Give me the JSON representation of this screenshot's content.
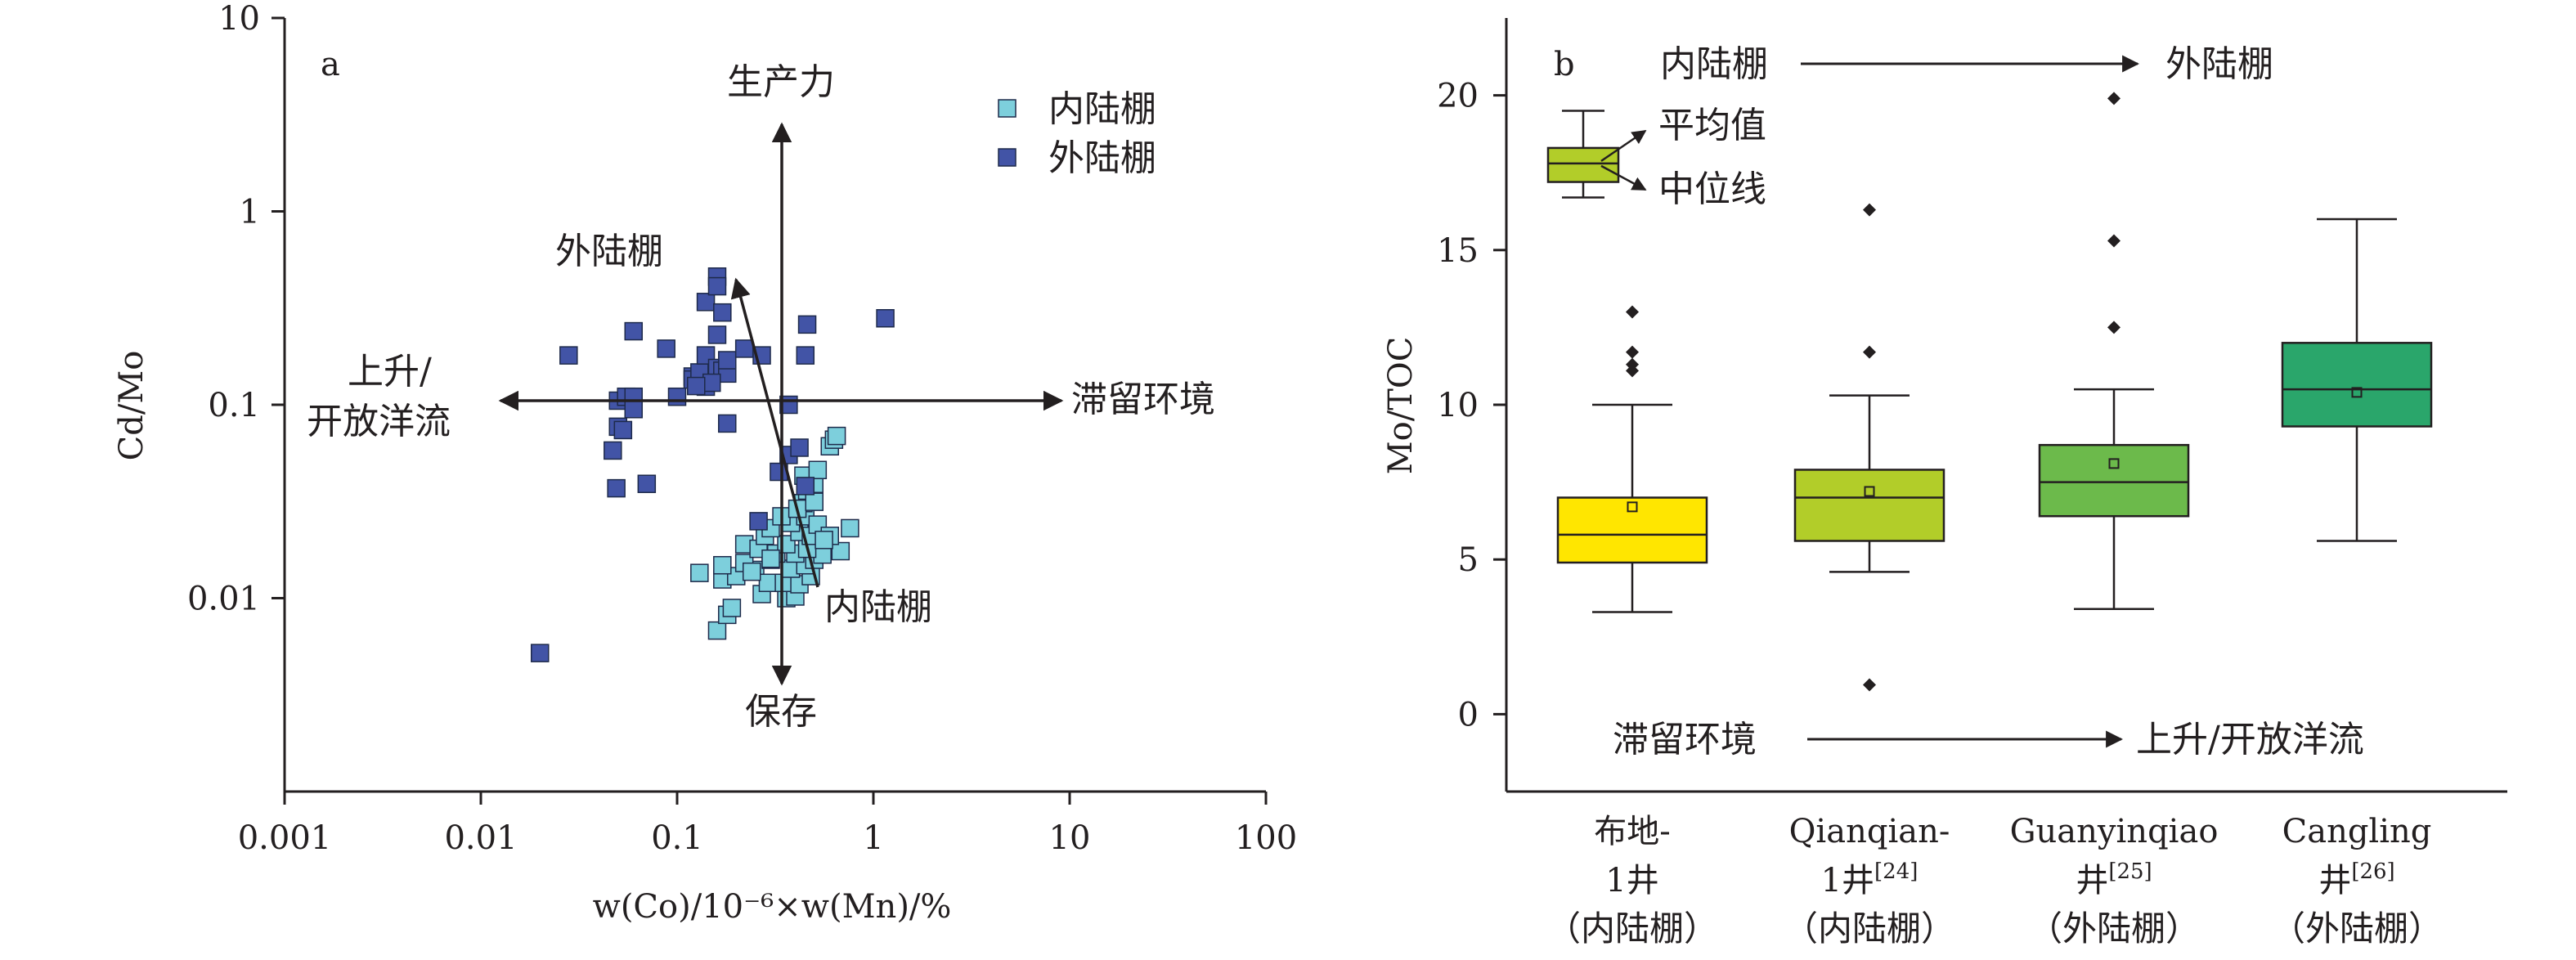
{
  "chart_data": [
    {
      "panel": "a",
      "type": "scatter",
      "xlabel": "w(Co)/10⁻⁶×w(Mn)/%",
      "ylabel": "Cd/Mo",
      "xscale": "log",
      "yscale": "log",
      "xlim": [
        0.001,
        100
      ],
      "ylim": [
        0.001,
        10
      ],
      "xticks": [
        0.001,
        0.01,
        0.1,
        1,
        10,
        100
      ],
      "xtick_labels": [
        "0.001",
        "0.01",
        "0.1",
        "1",
        "10",
        "100"
      ],
      "yticks": [
        0.01,
        0.1,
        1,
        10
      ],
      "ytick_labels": [
        "0.01",
        "0.1",
        "1",
        "10"
      ],
      "legend_position": "top-right",
      "colors": {
        "inner": "#7dcfdc",
        "outer": "#4254a6",
        "edge": "#1e2a4a"
      },
      "annotations": {
        "up": "生产力",
        "down": "保存",
        "right": "滞留环境",
        "left_line1": "上升/",
        "left_line2": "开放洋流",
        "trend_outer": "外陆棚",
        "trend_inner": "内陆棚"
      },
      "series": [
        {
          "name": "内陆棚",
          "key": "inner",
          "points": [
            [
              0.16,
              0.0068
            ],
            [
              0.18,
              0.0082
            ],
            [
              0.19,
              0.0089
            ],
            [
              0.27,
              0.0105
            ],
            [
              0.36,
              0.01
            ],
            [
              0.4,
              0.0102
            ],
            [
              0.17,
              0.0125
            ],
            [
              0.2,
              0.013
            ],
            [
              0.25,
              0.014
            ],
            [
              0.29,
              0.012
            ],
            [
              0.35,
              0.012
            ],
            [
              0.42,
              0.0118
            ],
            [
              0.48,
              0.013
            ],
            [
              0.17,
              0.0148
            ],
            [
              0.22,
              0.0152
            ],
            [
              0.3,
              0.0158
            ],
            [
              0.38,
              0.0142
            ],
            [
              0.45,
              0.0148
            ],
            [
              0.5,
              0.0158
            ],
            [
              0.55,
              0.0168
            ],
            [
              0.22,
              0.019
            ],
            [
              0.26,
              0.018
            ],
            [
              0.32,
              0.017
            ],
            [
              0.4,
              0.017
            ],
            [
              0.46,
              0.018
            ],
            [
              0.36,
              0.019
            ],
            [
              0.28,
              0.021
            ],
            [
              0.3,
              0.023
            ],
            [
              0.42,
              0.022
            ],
            [
              0.48,
              0.021
            ],
            [
              0.38,
              0.0245
            ],
            [
              0.45,
              0.0265
            ],
            [
              0.52,
              0.024
            ],
            [
              0.68,
              0.0175
            ],
            [
              0.76,
              0.023
            ],
            [
              0.6,
              0.021
            ],
            [
              0.44,
              0.031
            ],
            [
              0.46,
              0.036
            ],
            [
              0.5,
              0.039
            ],
            [
              0.44,
              0.043
            ],
            [
              0.52,
              0.046
            ],
            [
              0.6,
              0.061
            ],
            [
              0.63,
              0.066
            ],
            [
              0.65,
              0.069
            ],
            [
              0.56,
              0.02
            ],
            [
              0.24,
              0.0137
            ],
            [
              0.3,
              0.016
            ],
            [
              0.34,
              0.0265
            ],
            [
              0.41,
              0.029
            ],
            [
              0.5,
              0.0315
            ],
            [
              0.13,
              0.0135
            ]
          ]
        },
        {
          "name": "外陆棚",
          "key": "outer",
          "points": [
            [
              0.02,
              0.0052
            ],
            [
              0.028,
              0.18
            ],
            [
              0.049,
              0.037
            ],
            [
              0.07,
              0.039
            ],
            [
              0.047,
              0.058
            ],
            [
              0.05,
              0.077
            ],
            [
              0.053,
              0.074
            ],
            [
              0.05,
              0.105
            ],
            [
              0.055,
              0.11
            ],
            [
              0.06,
              0.11
            ],
            [
              0.06,
              0.095
            ],
            [
              0.06,
              0.24
            ],
            [
              0.088,
              0.195
            ],
            [
              0.12,
              0.14
            ],
            [
              0.12,
              0.135
            ],
            [
              0.13,
              0.147
            ],
            [
              0.14,
              0.18
            ],
            [
              0.14,
              0.34
            ],
            [
              0.14,
              0.124
            ],
            [
              0.16,
              0.46
            ],
            [
              0.16,
              0.41
            ],
            [
              0.17,
              0.3
            ],
            [
              0.16,
              0.23
            ],
            [
              0.16,
              0.155
            ],
            [
              0.17,
              0.15
            ],
            [
              0.18,
              0.145
            ],
            [
              0.18,
              0.17
            ],
            [
              0.15,
              0.13
            ],
            [
              0.22,
              0.195
            ],
            [
              0.27,
              0.18
            ],
            [
              0.18,
              0.08
            ],
            [
              0.26,
              0.025
            ],
            [
              0.33,
              0.045
            ],
            [
              0.37,
              0.055
            ],
            [
              0.37,
              0.1
            ],
            [
              0.46,
              0.26
            ],
            [
              0.45,
              0.18
            ],
            [
              0.42,
              0.06
            ],
            [
              0.45,
              0.038
            ],
            [
              1.15,
              0.28
            ],
            [
              0.1,
              0.11
            ],
            [
              0.125,
              0.125
            ]
          ]
        }
      ]
    },
    {
      "panel": "b",
      "type": "box",
      "ylabel": "Mo/TOC",
      "ylim": [
        -2.5,
        22.5
      ],
      "yticks": [
        0,
        5,
        10,
        15,
        20
      ],
      "ytick_labels": [
        "0",
        "5",
        "10",
        "15",
        "20"
      ],
      "categories": [
        {
          "name": "布地-",
          "line2": "1井",
          "sup": "",
          "shelf": "（内陆棚）"
        },
        {
          "name": "Qianqian-",
          "line2": "1井",
          "sup": "[24]",
          "shelf": "（内陆棚）"
        },
        {
          "name": "Guanyinqiao",
          "line2": "井",
          "sup": "[25]",
          "shelf": "（外陆棚）"
        },
        {
          "name": "Cangling",
          "line2": "井",
          "sup": "[26]",
          "shelf": "（外陆棚）"
        }
      ],
      "boxes": [
        {
          "whisker_low": 3.3,
          "q1": 4.9,
          "median": 5.8,
          "q3": 7.0,
          "whisker_high": 10.0,
          "mean": 6.7,
          "outliers": [
            11.1,
            11.3,
            11.7,
            13.0
          ],
          "color": "#ffe600"
        },
        {
          "whisker_low": 4.6,
          "q1": 5.6,
          "median": 7.0,
          "q3": 7.9,
          "whisker_high": 10.3,
          "mean": 7.2,
          "outliers": [
            0.95,
            11.7,
            16.3
          ],
          "color": "#b2cd29"
        },
        {
          "whisker_low": 3.4,
          "q1": 6.4,
          "median": 7.5,
          "q3": 8.7,
          "whisker_high": 10.5,
          "mean": 8.1,
          "outliers": [
            12.5,
            15.3,
            19.9
          ],
          "color": "#6cba4b"
        },
        {
          "whisker_low": 5.6,
          "q1": 9.3,
          "median": 10.5,
          "q3": 12.0,
          "whisker_high": 16.0,
          "mean": 10.4,
          "outliers": [],
          "color": "#2aa66b"
        }
      ],
      "legend_box": {
        "mean_label": "平均值",
        "median_label": "中位线",
        "color": "#b2cd29",
        "whisker_low": 16.7,
        "q1": 17.2,
        "median": 17.8,
        "q3": 18.3,
        "whisker_high": 19.5
      },
      "annotations": {
        "top_from": "内陆棚",
        "top_to": "外陆棚",
        "bottom_from": "滞留环境",
        "bottom_to": "上升/开放洋流"
      }
    }
  ]
}
